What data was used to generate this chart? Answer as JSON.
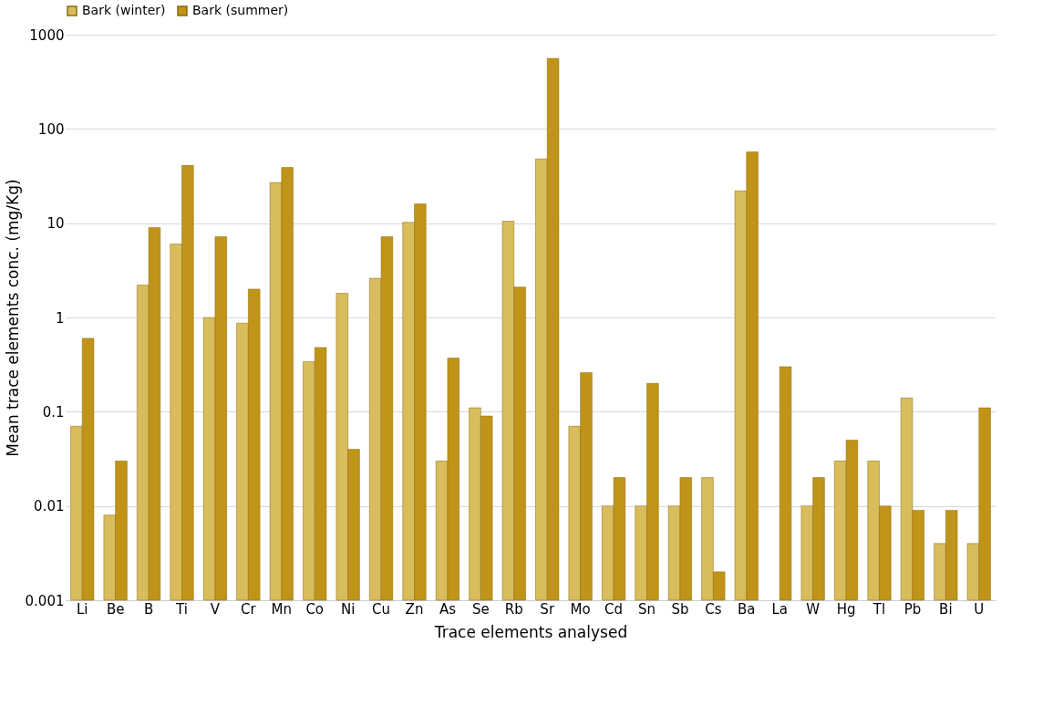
{
  "chart_data": {
    "type": "bar",
    "xlabel": "Trace elements analysed",
    "ylabel": "Mean trace elements conc. (mg/Kg)",
    "categories": [
      "Li",
      "Be",
      "B",
      "Ti",
      "V",
      "Cr",
      "Mn",
      "Co",
      "Ni",
      "Cu",
      "Zn",
      "As",
      "Se",
      "Rb",
      "Sr",
      "Mo",
      "Cd",
      "Sn",
      "Sb",
      "Cs",
      "Ba",
      "La",
      "W",
      "Hg",
      "Tl",
      "Pb",
      "Bi",
      "U"
    ],
    "series": [
      {
        "name": "Bark (winter)",
        "color": "#d9bc5c",
        "values": [
          0.07,
          0.008,
          2.2,
          6,
          1,
          0.87,
          27,
          0.34,
          1.8,
          2.6,
          10.2,
          0.03,
          0.11,
          10.5,
          48,
          0.07,
          0.01,
          0.01,
          0.01,
          0.02,
          22,
          null,
          0.01,
          0.03,
          0.03,
          0.14,
          0.004,
          0.004
        ]
      },
      {
        "name": "Bark (summer)",
        "color": "#c09418",
        "values": [
          0.6,
          0.03,
          9,
          41,
          7.2,
          2,
          39,
          0.48,
          0.04,
          7.2,
          16,
          0.37,
          0.09,
          2.1,
          560,
          0.26,
          0.02,
          0.2,
          0.02,
          0.002,
          57,
          0.3,
          0.02,
          0.05,
          0.01,
          0.009,
          0.009,
          0.11
        ]
      }
    ],
    "log": true,
    "ylim": [
      0.001,
      1000
    ],
    "yticks": [
      0.001,
      0.01,
      0.1,
      1,
      10,
      100,
      1000
    ],
    "grid": "y",
    "legend": "top"
  }
}
